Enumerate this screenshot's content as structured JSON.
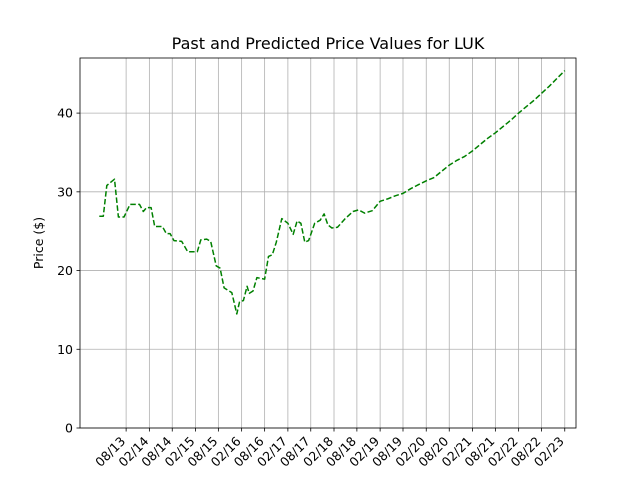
{
  "chart_data": {
    "type": "line",
    "title": "Past and Predicted Price Values for LUK",
    "xlabel": "",
    "ylabel": "Price ($)",
    "ylim": [
      0,
      47
    ],
    "yticks": [
      0,
      10,
      20,
      30,
      40
    ],
    "xlim": [
      "2012-08-01",
      "2023-05-01"
    ],
    "xticks": [
      "2013-08-01",
      "2014-02-01",
      "2014-08-01",
      "2015-02-01",
      "2015-08-01",
      "2016-02-01",
      "2016-08-01",
      "2017-02-01",
      "2017-08-01",
      "2018-02-01",
      "2018-08-01",
      "2019-02-01",
      "2019-08-01",
      "2020-02-01",
      "2020-08-01",
      "2021-02-01",
      "2021-08-01",
      "2022-02-01",
      "2022-08-01",
      "2023-02-01"
    ],
    "xtick_labels": [
      "08/13",
      "02/14",
      "08/14",
      "02/15",
      "08/15",
      "02/16",
      "08/16",
      "02/17",
      "08/17",
      "02/18",
      "08/18",
      "02/19",
      "08/19",
      "02/20",
      "08/20",
      "02/21",
      "08/21",
      "02/22",
      "08/22",
      "02/23"
    ],
    "grid": true,
    "series": [
      {
        "color": "#008000",
        "line_style": "dashed",
        "points": [
          [
            "2013-01-01",
            26.9
          ],
          [
            "2013-02-01",
            26.9
          ],
          [
            "2013-03-01",
            30.8
          ],
          [
            "2013-05-01",
            31.6
          ],
          [
            "2013-06-01",
            26.8
          ],
          [
            "2013-07-15",
            26.8
          ],
          [
            "2013-09-01",
            28.4
          ],
          [
            "2013-11-15",
            28.4
          ],
          [
            "2013-12-15",
            27.5
          ],
          [
            "2014-01-10",
            28.0
          ],
          [
            "2014-02-15",
            28.0
          ],
          [
            "2014-03-15",
            25.6
          ],
          [
            "2014-05-15",
            25.6
          ],
          [
            "2014-06-15",
            24.7
          ],
          [
            "2014-07-15",
            24.7
          ],
          [
            "2014-08-15",
            23.8
          ],
          [
            "2014-10-15",
            23.7
          ],
          [
            "2014-12-01",
            22.4
          ],
          [
            "2015-02-15",
            22.4
          ],
          [
            "2015-03-15",
            23.9
          ],
          [
            "2015-05-01",
            24.0
          ],
          [
            "2015-06-01",
            23.7
          ],
          [
            "2015-07-15",
            20.6
          ],
          [
            "2015-08-15",
            20.3
          ],
          [
            "2015-09-15",
            17.8
          ],
          [
            "2015-11-15",
            17.2
          ],
          [
            "2015-12-25",
            14.5
          ],
          [
            "2016-01-15",
            16.0
          ],
          [
            "2016-02-15",
            16.2
          ],
          [
            "2016-03-15",
            18.0
          ],
          [
            "2016-04-01",
            17.1
          ],
          [
            "2016-05-01",
            17.4
          ],
          [
            "2016-06-01",
            19.1
          ],
          [
            "2016-08-01",
            18.9
          ],
          [
            "2016-09-01",
            21.8
          ],
          [
            "2016-10-01",
            22.0
          ],
          [
            "2016-11-01",
            23.6
          ],
          [
            "2016-12-15",
            26.6
          ],
          [
            "2017-02-01",
            26.0
          ],
          [
            "2017-03-15",
            24.6
          ],
          [
            "2017-04-15",
            26.3
          ],
          [
            "2017-05-15",
            26.0
          ],
          [
            "2017-06-15",
            23.6
          ],
          [
            "2017-07-15",
            23.8
          ],
          [
            "2017-09-01",
            26.0
          ],
          [
            "2017-10-15",
            26.4
          ],
          [
            "2017-11-15",
            27.2
          ],
          [
            "2017-12-15",
            25.8
          ],
          [
            "2018-01-15",
            25.4
          ],
          [
            "2018-03-01",
            25.5
          ],
          [
            "2018-05-01",
            26.6
          ],
          [
            "2018-07-01",
            27.5
          ],
          [
            "2018-08-15",
            27.7
          ],
          [
            "2018-10-01",
            27.3
          ],
          [
            "2018-12-01",
            27.6
          ],
          [
            "2019-02-01",
            28.8
          ],
          [
            "2019-04-01",
            29.1
          ],
          [
            "2019-06-01",
            29.5
          ],
          [
            "2019-08-01",
            29.8
          ],
          [
            "2019-10-01",
            30.4
          ],
          [
            "2019-12-01",
            30.9
          ],
          [
            "2020-02-01",
            31.4
          ],
          [
            "2020-04-01",
            31.8
          ],
          [
            "2020-06-01",
            32.6
          ],
          [
            "2020-08-01",
            33.4
          ],
          [
            "2020-10-01",
            34.0
          ],
          [
            "2020-12-01",
            34.5
          ],
          [
            "2021-02-01",
            35.2
          ],
          [
            "2021-04-01",
            36.0
          ],
          [
            "2021-06-01",
            36.8
          ],
          [
            "2021-08-01",
            37.5
          ],
          [
            "2021-10-01",
            38.3
          ],
          [
            "2021-12-01",
            39.1
          ],
          [
            "2022-02-01",
            40.0
          ],
          [
            "2022-04-01",
            40.8
          ],
          [
            "2022-06-01",
            41.6
          ],
          [
            "2022-08-01",
            42.5
          ],
          [
            "2022-10-01",
            43.4
          ],
          [
            "2022-12-01",
            44.4
          ],
          [
            "2023-02-01",
            45.4
          ]
        ]
      }
    ]
  }
}
